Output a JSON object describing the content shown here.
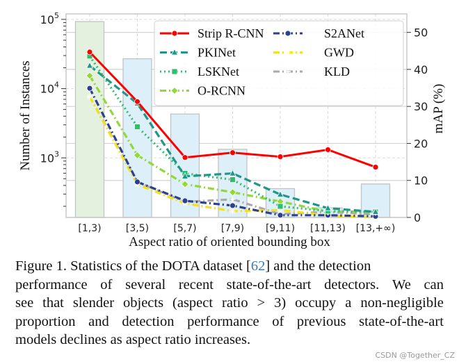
{
  "chart_data": {
    "type": "bar+line",
    "xlabel": "Aspect ratio of oriented bounding box",
    "ylabel_left": "Number of Instances",
    "ylabel_right": "mAP (%)",
    "categories": [
      "[1,3)",
      "[3,5)",
      "[5,7)",
      "[7,9)",
      "[9,11)",
      "[11,13)",
      "[13,+∞)"
    ],
    "left_axis": {
      "scale": "log",
      "ylim": [
        138,
        120000
      ],
      "ticks": [
        {
          "value": 1000,
          "label": "10",
          "exp": "3"
        },
        {
          "value": 10000,
          "label": "10",
          "exp": "4"
        },
        {
          "value": 100000,
          "label": "10",
          "exp": "5"
        }
      ]
    },
    "right_axis": {
      "scale": "linear",
      "ylim": [
        0,
        55
      ],
      "ticks": [
        0,
        10,
        20,
        30,
        40,
        50
      ]
    },
    "bars": {
      "values": [
        93000,
        27000,
        4300,
        1330,
        360,
        190,
        420
      ],
      "colors": [
        "#e5f1df",
        "#ddeff8",
        "#ddeff8",
        "#ddeff8",
        "#ddeff8",
        "#ddeff8",
        "#ddeff8"
      ],
      "edge": "#bfc4c6"
    },
    "series": [
      {
        "name": "Strip R-CNN",
        "color": "#ff0000",
        "dash": "solid",
        "marker": "circle",
        "values": [
          44.7,
          31.3,
          16.2,
          17.5,
          16.4,
          18.3,
          13.6
        ]
      },
      {
        "name": "PKINet",
        "color": "#1e9688",
        "dash": "dashed",
        "marker": "triangle",
        "values": [
          41.0,
          30.8,
          11.1,
          11.9,
          6.2,
          2.5,
          1.5
        ]
      },
      {
        "name": "LSKNet",
        "color": "#2cbf6c",
        "dash": "dotted",
        "marker": "square",
        "values": [
          43.6,
          24.5,
          11.9,
          10.2,
          3.0,
          1.7,
          1.5
        ]
      },
      {
        "name": "O-RCNN",
        "color": "#92d83a",
        "dash": "dashdot",
        "marker": "diamond",
        "values": [
          38.3,
          16.8,
          9.0,
          6.8,
          4.3,
          1.6,
          1.5
        ]
      },
      {
        "name": "S2ANet",
        "color": "#2d3f8e",
        "dash": "dashdot",
        "marker": "circle",
        "values": [
          34.9,
          9.6,
          4.5,
          3.2,
          0.6,
          0.6,
          0.3
        ]
      },
      {
        "name": "GWD",
        "color": "#f2e21b",
        "dash": "dashdot",
        "marker": "star",
        "values": [
          32.6,
          8.9,
          3.8,
          1.7,
          2.0,
          0.5,
          0.0
        ]
      },
      {
        "name": "KLD",
        "color": "#aaaaaa",
        "dash": "dashdot",
        "marker": "plus",
        "values": [
          32.6,
          9.6,
          4.2,
          4.9,
          0.9,
          1.5,
          0.8
        ]
      }
    ],
    "grid": true,
    "legend_placement": "top-right"
  },
  "caption": {
    "line1_a": "Figure 1.  Statistics of the DOTA dataset [",
    "ref": "62",
    "line1_b": "] and the detection",
    "lines": [
      "performance of several recent state-of-the-art detectors.  We can",
      "see that slender objects (aspect ratio > 3) occupy a non-negligible",
      "proportion and detection performance of previous state-of-the-art",
      "models declines as aspect ratio increases."
    ]
  },
  "watermark": "CSDN @Together_CZ"
}
